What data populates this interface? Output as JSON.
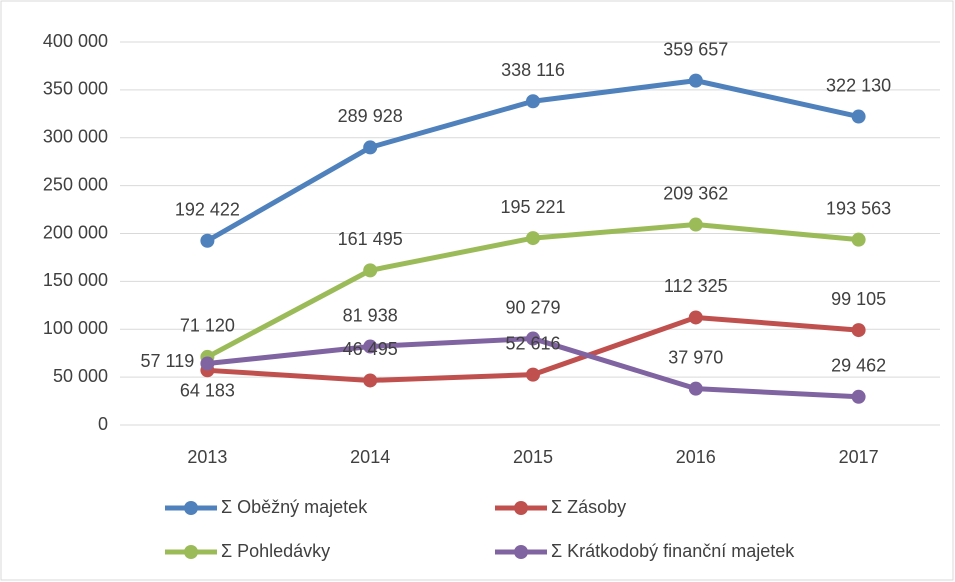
{
  "chart_data": {
    "type": "line",
    "categories": [
      "2013",
      "2014",
      "2015",
      "2016",
      "2017"
    ],
    "series": [
      {
        "name": "Σ Oběžný majetek",
        "color": "#4f81bd",
        "values": [
          192422,
          289928,
          338116,
          359657,
          322130
        ],
        "value_labels": [
          "192 422",
          "289 928",
          "338 116",
          "359 657",
          "322 130"
        ]
      },
      {
        "name": "Σ Zásoby",
        "color": "#c0504d",
        "values": [
          57119,
          46495,
          52616,
          112325,
          99105
        ],
        "value_labels": [
          "57 119",
          "46 495",
          "52 616",
          "112 325",
          "99 105"
        ]
      },
      {
        "name": "Σ Pohledávky",
        "color": "#9bbb59",
        "values": [
          71120,
          161495,
          195221,
          209362,
          193563
        ],
        "value_labels": [
          "71 120",
          "161 495",
          "195 221",
          "209 362",
          "193 563"
        ]
      },
      {
        "name": "Σ Krátkodobý finanční majetek",
        "color": "#8064a2",
        "values": [
          64183,
          81938,
          90279,
          37970,
          29462
        ],
        "value_labels": [
          "64 183",
          "81 938",
          "90 279",
          "37 970",
          "29 462"
        ]
      }
    ],
    "ylim": [
      0,
      400000
    ],
    "yticks": [
      {
        "value": 0,
        "label": "0"
      },
      {
        "value": 50000,
        "label": "50 000"
      },
      {
        "value": 100000,
        "label": "100 000"
      },
      {
        "value": 150000,
        "label": "150 000"
      },
      {
        "value": 200000,
        "label": "200 000"
      },
      {
        "value": 250000,
        "label": "250 000"
      },
      {
        "value": 300000,
        "label": "300 000"
      },
      {
        "value": 350000,
        "label": "350 000"
      },
      {
        "value": 400000,
        "label": "400 000"
      }
    ],
    "grid": true,
    "legend": "bottom"
  }
}
